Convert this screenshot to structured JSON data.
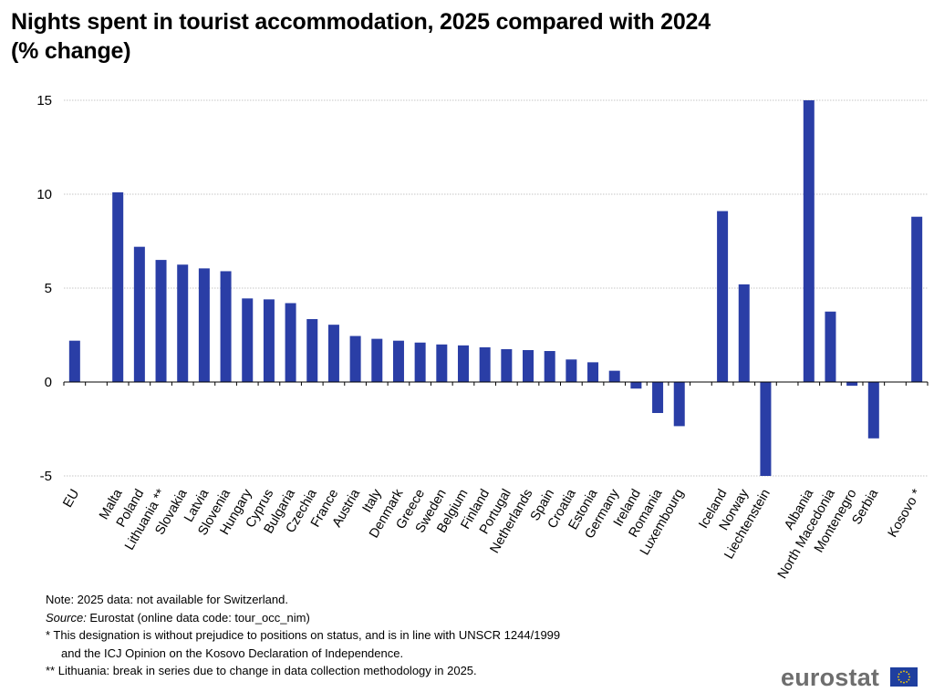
{
  "title": {
    "line1": "Nights spent in tourist accommodation, 2025 compared with 2024",
    "line2": "(% change)"
  },
  "chart_data": {
    "type": "bar",
    "categories": [
      "EU",
      "",
      "Malta",
      "Poland",
      "Lithuania **",
      "Slovakia",
      "Latvia",
      "Slovenia",
      "Hungary",
      "Cyprus",
      "Bulgaria",
      "Czechia",
      "France",
      "Austria",
      "Italy",
      "Denmark",
      "Greece",
      "Sweden",
      "Belgium",
      "Finland",
      "Portugal",
      "Netherlands",
      "Spain",
      "Croatia",
      "Estonia",
      "Germany",
      "Ireland",
      "Romania",
      "Luxembourg",
      "",
      "Iceland",
      "Norway",
      "Liechtenstein",
      "",
      "Albania",
      "North Macedonia",
      "Montenegro",
      "Serbia",
      "",
      "Kosovo *"
    ],
    "values": [
      2.2,
      null,
      10.1,
      7.2,
      6.5,
      6.25,
      6.05,
      5.9,
      4.45,
      4.4,
      4.2,
      3.35,
      3.05,
      2.45,
      2.3,
      2.2,
      2.1,
      2.0,
      1.95,
      1.85,
      1.75,
      1.7,
      1.65,
      1.2,
      1.05,
      0.6,
      -0.35,
      -1.65,
      -2.35,
      null,
      9.1,
      5.2,
      -5.0,
      null,
      15.0,
      3.75,
      -0.2,
      -3.0,
      null,
      8.8
    ],
    "title": "Nights spent in tourist accommodation, 2025 compared with 2024 (% change)",
    "xlabel": "",
    "ylabel": "",
    "ylim": [
      -5,
      15
    ],
    "yticks": [
      -5,
      0,
      5,
      10,
      15
    ],
    "grid": true,
    "bar_color": "#2a3ea6"
  },
  "notes": {
    "note": "Note: 2025 data: not available for Switzerland.",
    "source_label": "Source:",
    "source_text": " Eurostat (online data code: tour_occ_nim)",
    "footnote1_line1": "*  This designation is without prejudice to positions on status, and is in line with UNSCR 1244/1999",
    "footnote1_line2": "and the ICJ Opinion on the Kosovo Declaration of Independence.",
    "footnote2": "** Lithuania: break in series due to change in data collection methodology in 2025."
  },
  "logo": {
    "wordmark": "eurostat",
    "flag_color": "#1f3f9f",
    "star_color": "#ffd200",
    "icon": "eu-flag-icon"
  }
}
